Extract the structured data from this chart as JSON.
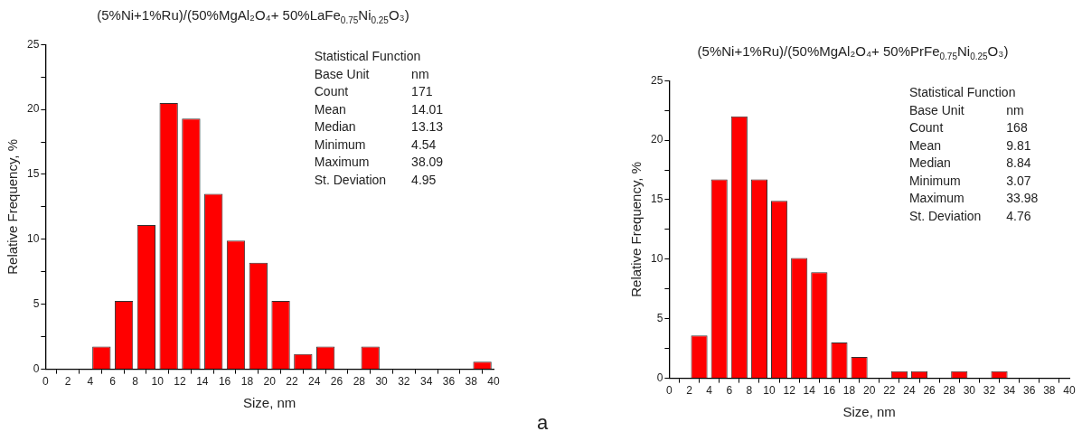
{
  "chart_data": [
    {
      "type": "histogram",
      "title": "(5%Ni+1%Ru)/(50%MgAl₂O₄+ 50%LaFe$_{0.75}$Ni$_{0.25}$O₃)",
      "xlabel": "Size, nm",
      "ylabel": "Relative Frequency, %",
      "color": "#ff0000",
      "bins": [
        0,
        2,
        4,
        6,
        8,
        10,
        12,
        14,
        16,
        18,
        20,
        22,
        24,
        26,
        28,
        30,
        32,
        34,
        36,
        38,
        40
      ],
      "values": [
        0,
        0,
        1.75,
        5.26,
        11.1,
        20.5,
        19.3,
        13.5,
        9.9,
        8.2,
        5.26,
        1.17,
        1.75,
        0,
        1.75,
        0,
        0,
        0,
        0,
        0.58
      ],
      "xlim": [
        0,
        40
      ],
      "xticks": [
        0,
        2,
        4,
        6,
        8,
        10,
        12,
        14,
        16,
        18,
        20,
        22,
        24,
        26,
        28,
        30,
        32,
        34,
        36,
        38,
        40
      ],
      "ylim": [
        0,
        25
      ],
      "yticks": [
        0,
        {
          "value": 2.5,
          "label": null
        },
        5,
        {
          "value": 7.5,
          "label": null
        },
        10,
        {
          "value": 12.5,
          "label": null
        },
        15,
        {
          "value": 17.5,
          "label": null
        },
        20,
        {
          "value": 22.5,
          "label": null
        },
        25
      ],
      "grid": false,
      "legend": false,
      "annotations": [
        "Statistical Function",
        "Base Unit",
        "nm",
        "Count",
        "171",
        "Mean",
        "14.01",
        "Median",
        "13.13",
        "Minimum",
        "4.54",
        "Maximum",
        "38.09",
        "St. Deviation",
        "4.95"
      ]
    },
    {
      "type": "histogram",
      "title": "(5%Ni+1%Ru)/(50%MgAl₂O₄+ 50%PrFe$_{0.75}$Ni$_{0.25}$O₃)",
      "xlabel": "Size, nm",
      "ylabel": "Relative Frequency, %",
      "color": "#ff0000",
      "bins": [
        0,
        2,
        4,
        6,
        8,
        10,
        12,
        14,
        16,
        18,
        20,
        22,
        24,
        26,
        28,
        30,
        32,
        34,
        36,
        38,
        40
      ],
      "values": [
        0,
        3.6,
        16.7,
        22.0,
        16.7,
        14.9,
        10.1,
        8.9,
        3.0,
        1.8,
        0,
        0.6,
        0.6,
        0,
        0.6,
        0,
        0.6,
        0,
        0,
        0
      ],
      "xlim": [
        0,
        40
      ],
      "xticks": [
        0,
        2,
        4,
        6,
        8,
        10,
        12,
        14,
        16,
        18,
        20,
        22,
        24,
        26,
        28,
        30,
        32,
        34,
        36,
        38,
        40
      ],
      "ylim": [
        0,
        25
      ],
      "yticks": [
        0,
        {
          "value": 2.5,
          "label": null
        },
        5,
        {
          "value": 7.5,
          "label": null
        },
        10,
        {
          "value": 12.5,
          "label": null
        },
        15,
        {
          "value": 17.5,
          "label": null
        },
        20,
        {
          "value": 22.5,
          "label": null
        },
        25
      ],
      "grid": false,
      "legend": false,
      "annotations": [
        "Statistical Function",
        "Base Unit",
        "nm",
        "Count",
        "168",
        "Mean",
        "9.81",
        "Median",
        "8.84",
        "Minimum",
        "3.07",
        "Maximum",
        "33.98",
        "St. Deviation",
        "4.76"
      ]
    },
    {
      "type": "other",
      "annotations": [
        "a"
      ]
    }
  ]
}
